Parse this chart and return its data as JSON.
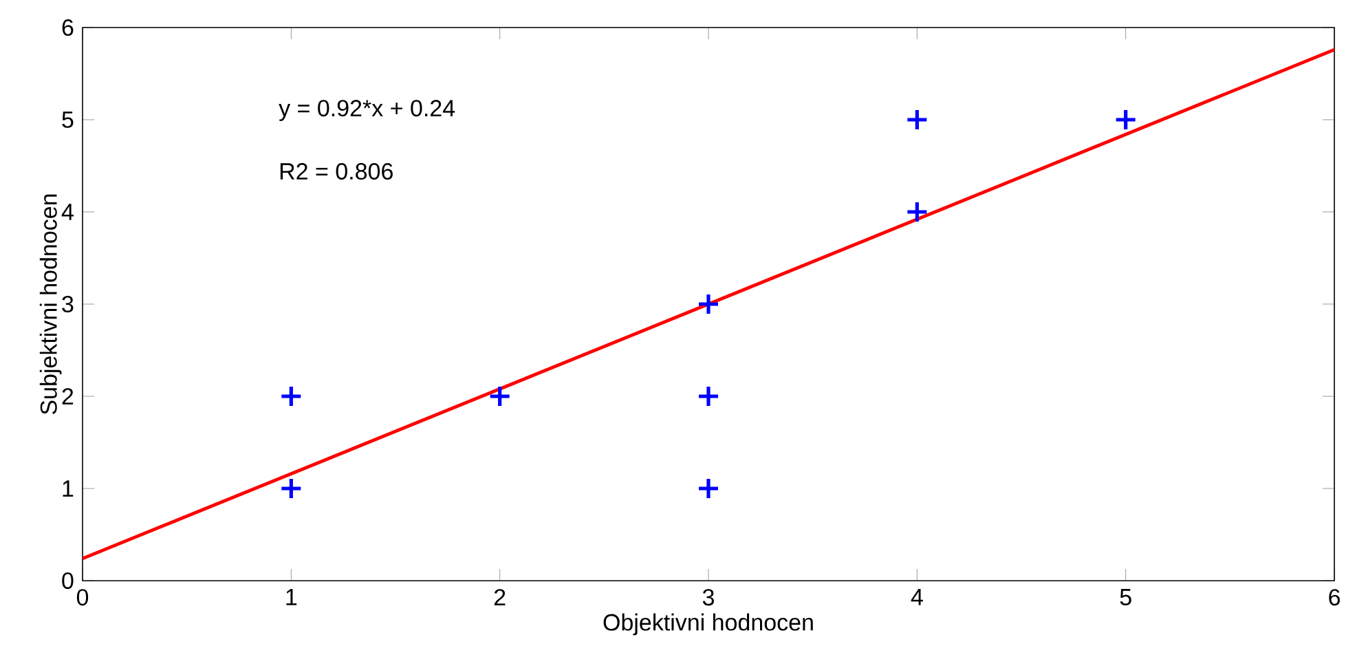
{
  "chart_data": {
    "type": "scatter",
    "xlabel": "Objektivni hodnocen",
    "ylabel": "Subjektivni hodnocen",
    "xlim": [
      0,
      6
    ],
    "ylim": [
      0,
      6
    ],
    "xticks": [
      0,
      1,
      2,
      3,
      4,
      5,
      6
    ],
    "yticks": [
      0,
      1,
      2,
      3,
      4,
      5,
      6
    ],
    "grid": false,
    "marker": "cross",
    "annotations": [
      "y = 0.92*x + 0.24",
      "R2 = 0.806"
    ],
    "series": [
      {
        "color": "#0000ff",
        "x": [
          1,
          1,
          2,
          3,
          3,
          3,
          4,
          4,
          5
        ],
        "values": [
          2,
          1,
          2,
          3,
          2,
          1,
          5,
          4,
          5
        ]
      },
      {
        "type": "line",
        "color": "#ff0000",
        "marker": "none",
        "line_style": "solid",
        "x": [
          0,
          6
        ],
        "values": [
          0.24,
          5.76
        ]
      }
    ]
  }
}
